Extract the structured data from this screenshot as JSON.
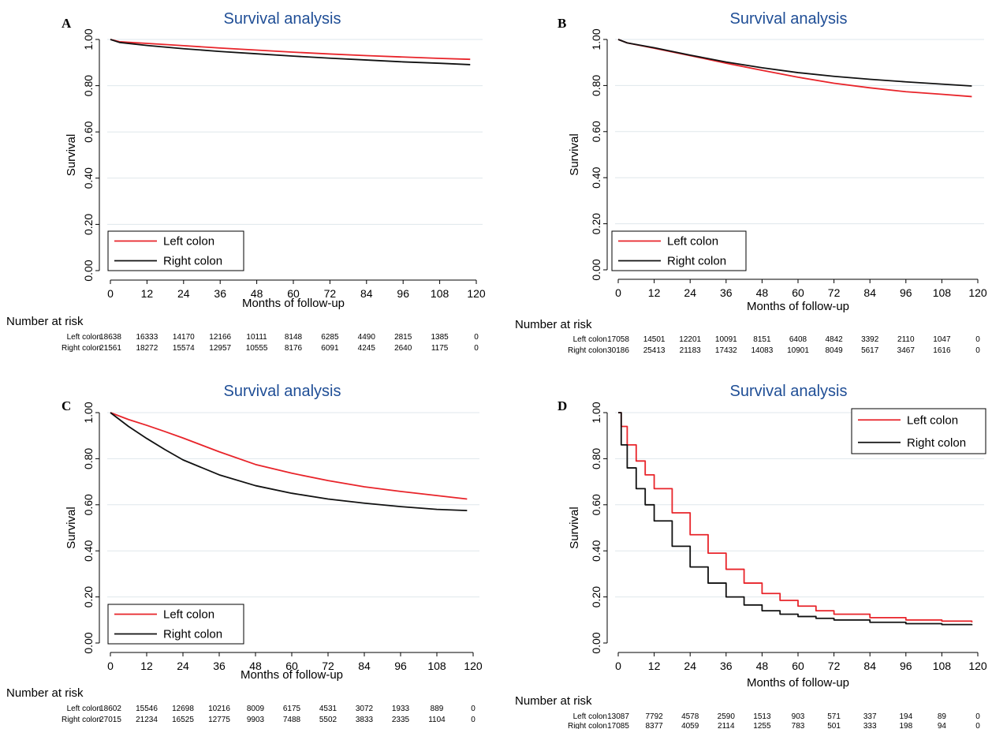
{
  "chart_data": [
    {
      "panel": "A",
      "type": "line",
      "title": "Survival analysis",
      "xlabel": "Months of follow-up",
      "ylabel": "Survival",
      "xlim": [
        0,
        120
      ],
      "ylim": [
        0,
        1
      ],
      "x_ticks": [
        "0",
        "12",
        "24",
        "36",
        "48",
        "60",
        "72",
        "84",
        "96",
        "108",
        "120"
      ],
      "y_ticks": [
        "0.00",
        "0.20",
        "0.40",
        "0.60",
        "0.80",
        "1.00"
      ],
      "grid": "horizontal",
      "legend_position": "bottom-left",
      "step": false,
      "series": [
        {
          "name": "Left colon",
          "color": "#e8242a",
          "x": [
            0,
            3,
            12,
            24,
            36,
            48,
            60,
            72,
            84,
            96,
            108,
            118
          ],
          "y": [
            1.0,
            0.99,
            0.983,
            0.973,
            0.963,
            0.954,
            0.945,
            0.937,
            0.93,
            0.924,
            0.918,
            0.914
          ]
        },
        {
          "name": "Right colon",
          "color": "#111111",
          "x": [
            0,
            3,
            12,
            24,
            36,
            48,
            60,
            72,
            84,
            96,
            108,
            118
          ],
          "y": [
            1.0,
            0.987,
            0.974,
            0.96,
            0.948,
            0.938,
            0.928,
            0.919,
            0.911,
            0.903,
            0.897,
            0.891
          ]
        }
      ],
      "risk_table": {
        "heading": "Number at risk",
        "rows": [
          {
            "label": "Left colon",
            "values": [
              "18638",
              "16333",
              "14170",
              "12166",
              "10111",
              "8148",
              "6285",
              "4490",
              "2815",
              "1385",
              "0"
            ]
          },
          {
            "label": "Right colon",
            "values": [
              "21561",
              "18272",
              "15574",
              "12957",
              "10555",
              "8176",
              "6091",
              "4245",
              "2640",
              "1175",
              "0"
            ]
          }
        ]
      }
    },
    {
      "panel": "B",
      "type": "line",
      "title": "Survival analysis",
      "xlabel": "Months of follow-up",
      "ylabel": "Survival",
      "xlim": [
        0,
        120
      ],
      "ylim": [
        0,
        1
      ],
      "x_ticks": [
        "0",
        "12",
        "24",
        "36",
        "48",
        "60",
        "72",
        "84",
        "96",
        "108",
        "120"
      ],
      "y_ticks": [
        "0.00",
        "0.20",
        "0.40",
        "0.60",
        "0.80",
        "1.00"
      ],
      "grid": "horizontal",
      "legend_position": "bottom-left",
      "step": false,
      "series": [
        {
          "name": "Left colon",
          "color": "#e8242a",
          "x": [
            0,
            3,
            12,
            24,
            36,
            48,
            60,
            72,
            84,
            96,
            108,
            118
          ],
          "y": [
            1.0,
            0.985,
            0.962,
            0.93,
            0.897,
            0.866,
            0.836,
            0.81,
            0.79,
            0.773,
            0.762,
            0.752
          ]
        },
        {
          "name": "Right colon",
          "color": "#111111",
          "x": [
            0,
            3,
            12,
            24,
            36,
            48,
            60,
            72,
            84,
            96,
            108,
            118
          ],
          "y": [
            1.0,
            0.985,
            0.964,
            0.932,
            0.902,
            0.877,
            0.856,
            0.84,
            0.827,
            0.816,
            0.806,
            0.798
          ]
        }
      ],
      "risk_table": {
        "heading": "Number at risk",
        "rows": [
          {
            "label": "Left colon",
            "values": [
              "17058",
              "14501",
              "12201",
              "10091",
              "8151",
              "6408",
              "4842",
              "3392",
              "2110",
              "1047",
              "0"
            ]
          },
          {
            "label": "Right colon",
            "values": [
              "30186",
              "25413",
              "21183",
              "17432",
              "14083",
              "10901",
              "8049",
              "5617",
              "3467",
              "1616",
              "0"
            ]
          }
        ]
      }
    },
    {
      "panel": "C",
      "type": "line",
      "title": "Survival analysis",
      "xlabel": "Months of follow-up",
      "ylabel": "Survival",
      "xlim": [
        0,
        120
      ],
      "ylim": [
        0,
        1
      ],
      "x_ticks": [
        "0",
        "12",
        "24",
        "36",
        "48",
        "60",
        "72",
        "84",
        "96",
        "108",
        "120"
      ],
      "y_ticks": [
        "0.00",
        "0.20",
        "0.40",
        "0.60",
        "0.80",
        "1.00"
      ],
      "grid": "horizontal",
      "legend_position": "bottom-left",
      "step": false,
      "series": [
        {
          "name": "Left colon",
          "color": "#e8242a",
          "x": [
            0,
            3,
            6,
            12,
            18,
            24,
            36,
            48,
            60,
            72,
            84,
            96,
            108,
            118
          ],
          "y": [
            1.0,
            0.985,
            0.97,
            0.945,
            0.918,
            0.89,
            0.83,
            0.775,
            0.737,
            0.705,
            0.678,
            0.658,
            0.64,
            0.625
          ]
        },
        {
          "name": "Right colon",
          "color": "#111111",
          "x": [
            0,
            3,
            6,
            12,
            18,
            24,
            36,
            48,
            60,
            72,
            84,
            96,
            108,
            118
          ],
          "y": [
            1.0,
            0.97,
            0.94,
            0.888,
            0.84,
            0.795,
            0.73,
            0.683,
            0.65,
            0.625,
            0.607,
            0.592,
            0.58,
            0.575
          ]
        }
      ],
      "risk_table": {
        "heading": "Number at risk",
        "rows": [
          {
            "label": "Left colon",
            "values": [
              "18602",
              "15546",
              "12698",
              "10216",
              "8009",
              "6175",
              "4531",
              "3072",
              "1933",
              "889",
              "0"
            ]
          },
          {
            "label": "Right colon",
            "values": [
              "27015",
              "21234",
              "16525",
              "12775",
              "9903",
              "7488",
              "5502",
              "3833",
              "2335",
              "1104",
              "0"
            ]
          }
        ]
      }
    },
    {
      "panel": "D",
      "type": "line",
      "title": "Survival analysis",
      "xlabel": "Months of follow-up",
      "ylabel": "Survival",
      "xlim": [
        0,
        120
      ],
      "ylim": [
        0,
        1
      ],
      "x_ticks": [
        "0",
        "12",
        "24",
        "36",
        "48",
        "60",
        "72",
        "84",
        "96",
        "108",
        "120"
      ],
      "y_ticks": [
        "0.00",
        "0.20",
        "0.40",
        "0.60",
        "0.80",
        "1.00"
      ],
      "grid": "horizontal",
      "legend_position": "top-right",
      "step": true,
      "series": [
        {
          "name": "Left colon",
          "color": "#e8242a",
          "x": [
            0,
            1,
            3,
            6,
            9,
            12,
            18,
            24,
            30,
            36,
            42,
            48,
            54,
            60,
            66,
            72,
            84,
            96,
            108,
            118
          ],
          "y": [
            1.0,
            0.94,
            0.86,
            0.79,
            0.73,
            0.67,
            0.565,
            0.47,
            0.39,
            0.32,
            0.26,
            0.215,
            0.185,
            0.16,
            0.14,
            0.125,
            0.11,
            0.1,
            0.095,
            0.09
          ]
        },
        {
          "name": "Right colon",
          "color": "#111111",
          "x": [
            0,
            1,
            3,
            6,
            9,
            12,
            18,
            24,
            30,
            36,
            42,
            48,
            54,
            60,
            66,
            72,
            84,
            96,
            108,
            118
          ],
          "y": [
            1.0,
            0.86,
            0.76,
            0.67,
            0.6,
            0.53,
            0.42,
            0.33,
            0.26,
            0.2,
            0.165,
            0.14,
            0.125,
            0.115,
            0.107,
            0.1,
            0.09,
            0.084,
            0.08,
            0.077
          ]
        }
      ],
      "risk_table": {
        "heading": "Number at risk",
        "rows": [
          {
            "label": "Left colon",
            "values": [
              "13087",
              "7792",
              "4578",
              "2590",
              "1513",
              "903",
              "571",
              "337",
              "194",
              "89",
              "0"
            ]
          },
          {
            "label": "Right colon",
            "values": [
              "17085",
              "8377",
              "4059",
              "2114",
              "1255",
              "783",
              "501",
              "333",
              "198",
              "94",
              "0"
            ]
          }
        ]
      }
    }
  ]
}
